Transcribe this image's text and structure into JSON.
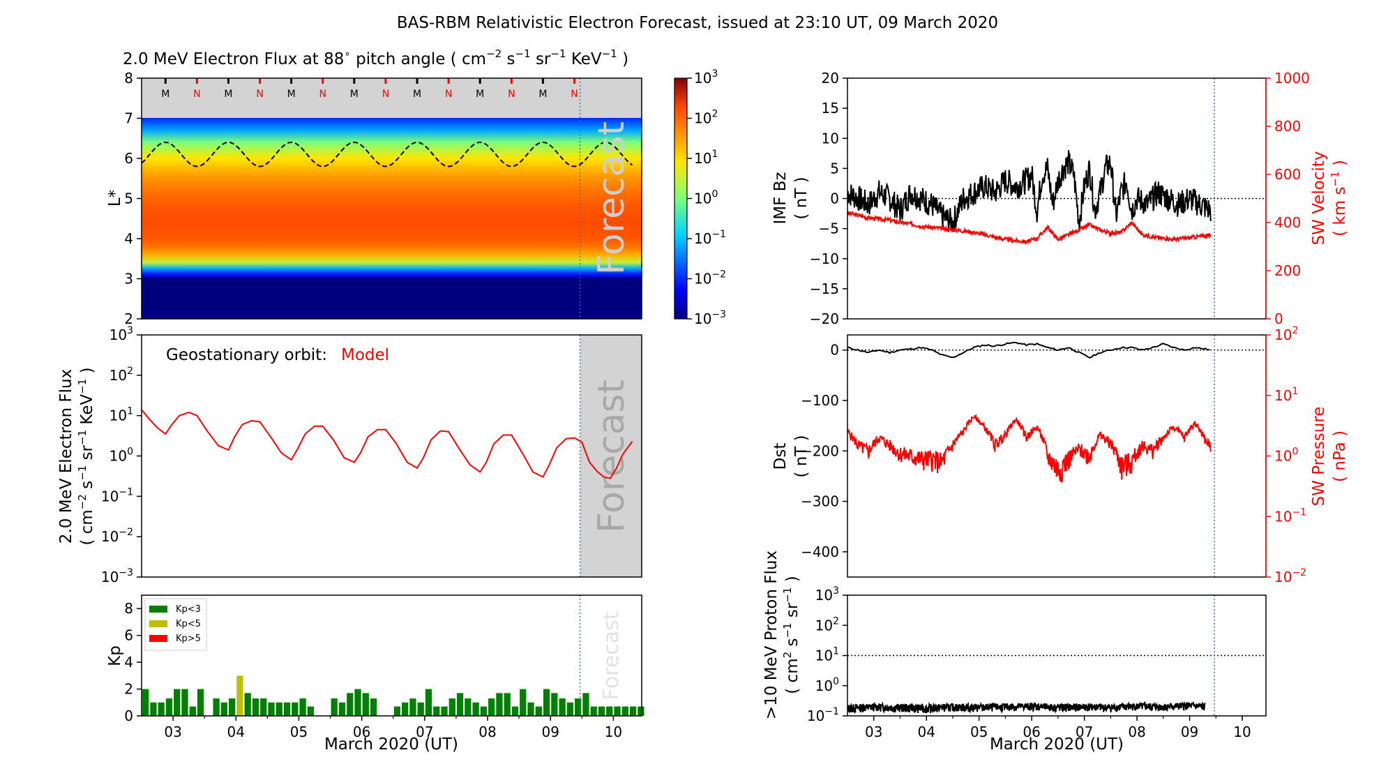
{
  "page_title": "BAS-RBM Relativistic Electron Forecast, issued at 23:10 UT, 09 March 2020",
  "colors": {
    "black": "#000000",
    "red": "#ff0000",
    "forecast_line": "#1f77b4",
    "shade": "#d3d3d3",
    "kp_lt3": "#008000",
    "kp_lt5": "#bfbf00",
    "kp_gt5": "#ff0000"
  },
  "chart_data": [
    {
      "id": "flux-map",
      "type": "heatmap",
      "title_main": "2.0 MeV Electron Flux at 88",
      "title_deg": "∘",
      "title_mid": " pitch angle ( cm",
      "title_sup1": "−2",
      "title_s": " s",
      "title_sup2": "−1",
      "title_sr": " sr",
      "title_sup3": "−1",
      "title_kev": " KeV",
      "title_sup4": "−1",
      "title_end": " )",
      "ylabel": "L*",
      "ylim": [
        2,
        8
      ],
      "yticks": [
        "2",
        "3",
        "4",
        "5",
        "6",
        "7",
        "8"
      ],
      "xlim": [
        2.5,
        10.45
      ],
      "forecast_start": 9.47,
      "forecast_label": "Forecast",
      "mlt_markers": [
        "M",
        "N",
        "M",
        "N",
        "M",
        "N",
        "M",
        "N",
        "M",
        "N",
        "M",
        "N",
        "M",
        "N"
      ],
      "mlt_positions": [
        2.88,
        3.38,
        3.88,
        4.38,
        4.88,
        5.38,
        5.88,
        6.38,
        6.88,
        7.38,
        7.88,
        8.38,
        8.88,
        9.38
      ],
      "profile_L": [
        3.0,
        3.1,
        3.25,
        3.4,
        3.6,
        3.8,
        4.0,
        4.4,
        4.8,
        5.2,
        5.6,
        6.0,
        6.4,
        6.7,
        7.0
      ],
      "profile_log_flux": [
        -3,
        -2.2,
        -1.2,
        0.5,
        1.4,
        1.9,
        2.15,
        2.25,
        2.15,
        1.9,
        1.5,
        0.9,
        0.0,
        -1.2,
        -2.0
      ],
      "geo_L_center": 6.1,
      "geo_L_amplitude": 0.3,
      "colorbar": {
        "min_exp": -3,
        "max_exp": 3,
        "base": "10",
        "tick_exps": [
          "−3",
          "−2",
          "−1",
          "0",
          "1",
          "2",
          "3"
        ]
      }
    },
    {
      "id": "geo-flux",
      "type": "line",
      "annotation": "Geostationary orbit:",
      "annotation_model": "Model",
      "ylabel_line1": "2.0 MeV Electron Flux",
      "ylabel_line2_parts": [
        "( cm",
        "−2",
        " s",
        "−1",
        " sr",
        "−1",
        " KeV",
        "−1",
        " )"
      ],
      "ylim_exp": [
        -3,
        3
      ],
      "ytick_exps": [
        "−3",
        "−2",
        "−1",
        "0",
        "1",
        "2",
        "3"
      ],
      "xlim": [
        2.5,
        10.45
      ],
      "forecast_start": 9.47,
      "forecast_label": "Forecast",
      "series": [
        {
          "x": [
            2.5,
            2.6,
            2.75,
            2.88,
            2.98,
            3.1,
            3.25,
            3.38,
            3.55,
            3.72,
            3.88,
            3.98,
            4.1,
            4.25,
            4.38,
            4.55,
            4.72,
            4.88,
            4.98,
            5.1,
            5.25,
            5.38,
            5.55,
            5.72,
            5.88,
            5.98,
            6.1,
            6.25,
            6.38,
            6.55,
            6.72,
            6.88,
            6.98,
            7.1,
            7.25,
            7.38,
            7.55,
            7.72,
            7.88,
            7.98,
            8.1,
            8.25,
            8.38,
            8.55,
            8.72,
            8.88,
            8.98,
            9.1,
            9.25,
            9.38,
            9.5,
            9.62,
            9.75,
            9.85,
            9.95,
            10.05,
            10.15,
            10.3
          ],
          "y": [
            14,
            9,
            5,
            3.5,
            6,
            10,
            12,
            10,
            4,
            1.8,
            1.4,
            3,
            6,
            7.5,
            7,
            3,
            1.2,
            0.8,
            1.5,
            3.5,
            5.5,
            5.5,
            2.5,
            0.9,
            0.7,
            1.2,
            3,
            4.5,
            4.5,
            2,
            0.7,
            0.5,
            0.9,
            2.5,
            4.2,
            4,
            1.5,
            0.6,
            0.4,
            0.7,
            2,
            3.3,
            3.3,
            1.2,
            0.4,
            0.3,
            0.6,
            1.6,
            2.7,
            2.8,
            2.2,
            0.7,
            0.4,
            0.3,
            0.28,
            0.5,
            1.1,
            2.3
          ]
        }
      ]
    },
    {
      "id": "kp",
      "type": "bar",
      "ylabel": "Kp",
      "ylim": [
        0,
        9
      ],
      "yticks": [
        "0",
        "2",
        "4",
        "6",
        "8"
      ],
      "xlim": [
        2.5,
        10.45
      ],
      "xticks": [
        "03",
        "04",
        "05",
        "06",
        "07",
        "08",
        "09",
        "10"
      ],
      "xlabel": "March 2020 (UT)",
      "forecast_start": 9.47,
      "forecast_label": "Forecast",
      "legend": [
        "Kp<3",
        "Kp<5",
        "Kp>5"
      ],
      "bar_start": 2.5,
      "bar_width_days": 0.125,
      "values": [
        2,
        1,
        1,
        1.3,
        2,
        2,
        0.7,
        2,
        0,
        1.3,
        1,
        1.3,
        3,
        1.7,
        1.3,
        1.3,
        1,
        1,
        1,
        1,
        1.3,
        0.7,
        0,
        0,
        1.3,
        1,
        1.7,
        2,
        1.7,
        1.3,
        0,
        0,
        0.7,
        1,
        1.3,
        1,
        2,
        0.7,
        0.7,
        1.3,
        1.7,
        1.3,
        1,
        0.7,
        1.3,
        1.7,
        1.7,
        0.7,
        2,
        1,
        0.7,
        2,
        1.7,
        1.3,
        1,
        1.3,
        1.7,
        0.7,
        0.7,
        0.7,
        0.7,
        0.7,
        0.7,
        0.7
      ]
    },
    {
      "id": "imf-sw",
      "type": "line",
      "ylabel_left": "IMF Bz",
      "ylabel_left_unit": "( nT )",
      "ylabel_right": "SW Velocity",
      "ylabel_right_unit": "( km s",
      "ylabel_right_sup": "−1",
      "ylabel_right_end": " )",
      "ylim_left": [
        -20,
        20
      ],
      "yticks_left": [
        "−20",
        "−15",
        "−10",
        "−5",
        "0",
        "5",
        "10",
        "15",
        "20"
      ],
      "ylim_right": [
        0,
        1000
      ],
      "yticks_right": [
        "0",
        "200",
        "400",
        "600",
        "800",
        "1000"
      ],
      "xlim": [
        2.5,
        10.45
      ],
      "forecast_start": 9.47,
      "series": [
        {
          "name": "IMF Bz",
          "x": [
            2.5,
            2.7,
            2.9,
            3.1,
            3.3,
            3.5,
            3.7,
            3.9,
            4.1,
            4.3,
            4.5,
            4.7,
            4.9,
            5.1,
            5.3,
            5.5,
            5.7,
            5.9,
            6.0,
            6.1,
            6.2,
            6.3,
            6.4,
            6.5,
            6.6,
            6.7,
            6.8,
            6.9,
            7.0,
            7.1,
            7.2,
            7.3,
            7.4,
            7.5,
            7.6,
            7.7,
            7.8,
            7.9,
            8.0,
            8.2,
            8.4,
            8.6,
            8.8,
            9.0,
            9.2,
            9.4
          ],
          "y": [
            1,
            0,
            -1,
            1,
            0,
            -2,
            1,
            0,
            -1,
            -3,
            -4,
            0,
            1,
            2,
            1,
            3,
            2,
            3,
            4,
            -2,
            4,
            5,
            -1,
            3,
            5,
            6,
            4,
            -4,
            2,
            5,
            -2,
            1,
            5,
            6,
            -3,
            1,
            3,
            -2,
            0,
            -1,
            1,
            0,
            -1,
            0,
            -1,
            -2
          ]
        },
        {
          "name": "SW Velocity",
          "x": [
            2.5,
            2.7,
            2.9,
            3.1,
            3.3,
            3.5,
            3.7,
            3.9,
            4.1,
            4.3,
            4.5,
            4.7,
            4.9,
            5.1,
            5.3,
            5.5,
            5.7,
            5.9,
            6.1,
            6.3,
            6.5,
            6.7,
            6.9,
            7.1,
            7.3,
            7.5,
            7.7,
            7.9,
            8.1,
            8.3,
            8.5,
            8.7,
            8.9,
            9.1,
            9.3,
            9.4
          ],
          "y": [
            440,
            430,
            420,
            415,
            410,
            400,
            395,
            385,
            380,
            375,
            370,
            365,
            360,
            350,
            340,
            330,
            325,
            320,
            335,
            380,
            330,
            350,
            370,
            390,
            370,
            355,
            360,
            400,
            350,
            340,
            335,
            330,
            335,
            340,
            345,
            345
          ]
        }
      ]
    },
    {
      "id": "dst-swp",
      "type": "line",
      "ylabel_left": "Dst",
      "ylabel_left_unit": "( nT )",
      "ylabel_right": "SW Pressure",
      "ylabel_right_unit": "( nPa )",
      "ylim_left": [
        -450,
        30
      ],
      "yticks_left": [
        "−400",
        "−300",
        "−200",
        "−100",
        "0"
      ],
      "ylim_right_exp": [
        -2,
        2
      ],
      "ytick_right_exps": [
        "−2",
        "−1",
        "0",
        "1",
        "2"
      ],
      "xlim": [
        2.5,
        10.45
      ],
      "forecast_start": 9.47,
      "series": [
        {
          "name": "Dst",
          "x": [
            2.5,
            2.7,
            2.9,
            3.1,
            3.3,
            3.5,
            3.7,
            3.9,
            4.1,
            4.3,
            4.5,
            4.7,
            4.9,
            5.1,
            5.3,
            5.5,
            5.7,
            5.9,
            6.1,
            6.3,
            6.5,
            6.7,
            6.9,
            7.1,
            7.3,
            7.5,
            7.7,
            7.9,
            8.1,
            8.3,
            8.5,
            8.7,
            8.9,
            9.1,
            9.3,
            9.4
          ],
          "y": [
            5,
            0,
            -5,
            0,
            -5,
            0,
            2,
            5,
            0,
            -10,
            -15,
            -5,
            5,
            10,
            8,
            12,
            15,
            10,
            12,
            5,
            0,
            5,
            -5,
            -15,
            -5,
            0,
            5,
            5,
            0,
            5,
            12,
            5,
            0,
            5,
            2,
            0
          ]
        },
        {
          "name": "SW Pressure",
          "x": [
            2.5,
            2.7,
            2.9,
            3.1,
            3.3,
            3.5,
            3.7,
            3.9,
            4.1,
            4.3,
            4.5,
            4.7,
            4.9,
            5.1,
            5.3,
            5.5,
            5.7,
            5.9,
            6.1,
            6.3,
            6.5,
            6.7,
            6.9,
            7.1,
            7.3,
            7.5,
            7.7,
            7.9,
            8.1,
            8.3,
            8.5,
            8.7,
            8.9,
            9.1,
            9.3,
            9.4
          ],
          "y": [
            2.5,
            1.5,
            1.2,
            2,
            1.5,
            1.1,
            1.0,
            0.9,
            0.9,
            0.8,
            1.5,
            2.5,
            4.5,
            3.0,
            1.5,
            2.2,
            4.0,
            2.0,
            3.0,
            1.0,
            0.6,
            0.9,
            1.3,
            1.0,
            2.2,
            1.6,
            0.7,
            0.8,
            1.5,
            1.2,
            2.0,
            3.0,
            2.0,
            3.5,
            1.8,
            1.4
          ]
        }
      ]
    },
    {
      "id": "proton-flux",
      "type": "line",
      "ylabel_line1": ">10 MeV Proton Flux",
      "ylabel_line2_parts": [
        "( cm",
        "2",
        " s",
        "−1",
        " sr",
        "−1",
        " )"
      ],
      "ylim_exp": [
        -1,
        3
      ],
      "ytick_exps": [
        "−1",
        "0",
        "1",
        "2",
        "3"
      ],
      "threshold": 10,
      "xlim": [
        2.5,
        10.45
      ],
      "xticks": [
        "03",
        "04",
        "05",
        "06",
        "07",
        "08",
        "09",
        "10"
      ],
      "xlabel": "March 2020 (UT)",
      "forecast_start": 9.47,
      "series": [
        {
          "x": [
            2.5,
            3.0,
            3.5,
            4.0,
            4.5,
            5.0,
            5.5,
            6.0,
            6.5,
            7.0,
            7.5,
            8.0,
            8.5,
            9.0,
            9.3
          ],
          "y": [
            0.18,
            0.2,
            0.19,
            0.18,
            0.2,
            0.19,
            0.2,
            0.21,
            0.19,
            0.2,
            0.19,
            0.21,
            0.2,
            0.22,
            0.2
          ]
        }
      ]
    }
  ]
}
